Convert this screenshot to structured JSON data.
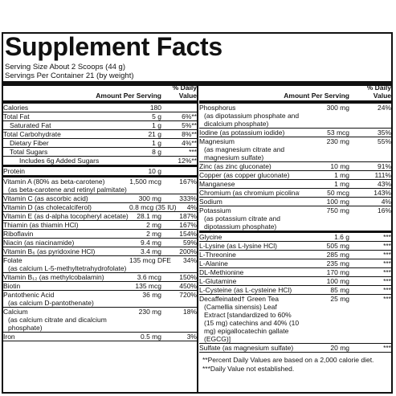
{
  "title": "Supplement Facts",
  "serving_size": "Serving Size About 2 Scoops (44 g)",
  "servings_per_container": "Servings Per Container 21 (by weight)",
  "header": {
    "amount": "Amount Per Serving",
    "dv": "% Daily Value"
  },
  "left": [
    {
      "n": "Calories",
      "a": "180",
      "d": ""
    },
    {
      "n": "Total Fat",
      "a": "5 g",
      "d": "6%**"
    },
    {
      "n": "Saturated Fat",
      "a": "1 g",
      "d": "5%**"
    },
    {
      "n": "Total Carbohydrate",
      "a": "21 g",
      "d": "8%**"
    },
    {
      "n": "Dietary Fiber",
      "a": "1 g",
      "d": "4%**"
    },
    {
      "n": "Total Sugars",
      "a": "8 g",
      "d": "***"
    },
    {
      "n": "Includes 6g Added Sugars",
      "a": "",
      "d": "12%**"
    },
    {
      "n": "Protein",
      "a": "10 g",
      "d": ""
    },
    {
      "n": "Vitamin A (80% as beta-carotene)",
      "a": "1,500 mcg",
      "d": "167%",
      "s": "(as beta-carotene and retinyl palmitate)"
    },
    {
      "n": "Vitamin C (as ascorbic acid)",
      "a": "300 mg",
      "d": "333%"
    },
    {
      "n": "Vitamin D (as cholecalciferol)",
      "a": "0.8 mcg (35 IU)",
      "d": "4%"
    },
    {
      "n": "Vitamin E (as d-alpha tocopheryl acetate)",
      "a": "28.1 mg",
      "d": "187%"
    },
    {
      "n": "Thiamin (as thiamin HCl)",
      "a": "2 mg",
      "d": "167%"
    },
    {
      "n": "Riboflavin",
      "a": "2 mg",
      "d": "154%"
    },
    {
      "n": "Niacin (as niacinamide)",
      "a": "9.4 mg",
      "d": "59%"
    },
    {
      "n": "Vitamin B₆ (as pyridoxine HCl)",
      "a": "3.4 mg",
      "d": "200%"
    },
    {
      "n": "Folate",
      "a": "135 mcg DFE",
      "d": "34%",
      "s": "(as calcium L-5-methyltetrahydrofolate)"
    },
    {
      "n": "Vitamin B₁₂ (as methylcobalamin)",
      "a": "3.6 mcg",
      "d": "150%"
    },
    {
      "n": "Biotin",
      "a": "135 mcg",
      "d": "450%"
    },
    {
      "n": "Pantothenic Acid",
      "a": "36 mg",
      "d": "720%",
      "s": "(as calcium D-pantothenate)"
    },
    {
      "n": "Calcium",
      "a": "230 mg",
      "d": "18%",
      "s": "(as calcium citrate and dicalcium phosphate)"
    },
    {
      "n": "Iron",
      "a": "0.5 mg",
      "d": "3%"
    }
  ],
  "right": [
    {
      "n": "Phosphorus",
      "a": "300 mg",
      "d": "24%",
      "s": "(as dipotassium phosphate and dicalcium phosphate)"
    },
    {
      "n": "Iodine (as potassium iodide)",
      "a": "53 mcg",
      "d": "35%"
    },
    {
      "n": "Magnesium",
      "a": "230 mg",
      "d": "55%",
      "s": "(as magnesium citrate and magnesium sulfate)"
    },
    {
      "n": "Zinc (as zinc gluconate)",
      "a": "10 mg",
      "d": "91%"
    },
    {
      "n": "Copper (as copper gluconate)",
      "a": "1 mg",
      "d": "111%"
    },
    {
      "n": "Manganese",
      "a": "1 mg",
      "d": "43%"
    },
    {
      "n": "Chromium (as chromium picolinate)",
      "a": "50 mcg",
      "d": "143%"
    },
    {
      "n": "Sodium",
      "a": "100 mg",
      "d": "4%"
    },
    {
      "n": "Potassium",
      "a": "750 mg",
      "d": "16%",
      "s": "(as potassium citrate and dipotassium phosphate)"
    },
    {
      "n": "Glycine",
      "a": "1.6 g",
      "d": "***"
    },
    {
      "n": "L-Lysine (as L-lysine HCl)",
      "a": "505 mg",
      "d": "***"
    },
    {
      "n": "L-Threonine",
      "a": "285 mg",
      "d": "***"
    },
    {
      "n": "L-Alanine",
      "a": "235 mg",
      "d": "***"
    },
    {
      "n": "DL-Methionine",
      "a": "170 mg",
      "d": "***"
    },
    {
      "n": "L-Glutamine",
      "a": "100 mg",
      "d": "***"
    },
    {
      "n": "L-Cysteine (as L-cysteine HCl)",
      "a": "85 mg",
      "d": "***"
    },
    {
      "n": "Decaffeinated† Green Tea",
      "a": "25 mg",
      "d": "***",
      "s": "(Camellia sinensis) Leaf Extract [standardized to 60% (15 mg) catechins and 40% (10 mg) epigallocatechin gallate (EGCG)]"
    },
    {
      "n": "Sulfate (as magnesium sulfate)",
      "a": "20 mg",
      "d": "***"
    }
  ],
  "footnotes": [
    "**Percent Daily Values are based on a 2,000 calorie diet.",
    "***Daily Value not established."
  ]
}
